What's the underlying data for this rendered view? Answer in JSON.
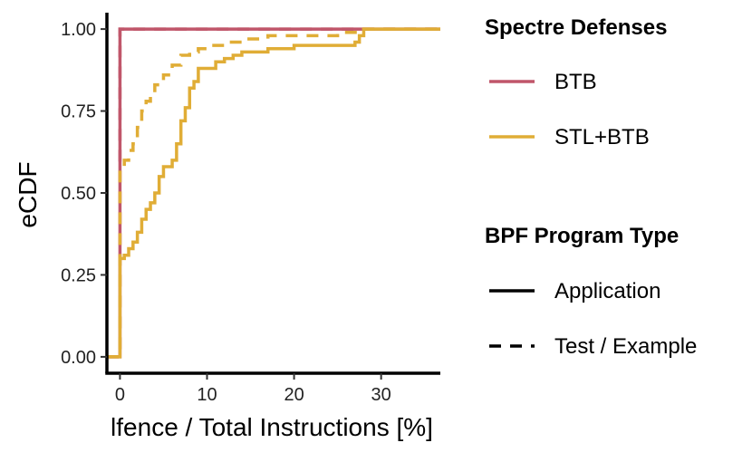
{
  "chart_data": {
    "type": "line",
    "subtype": "ecdf-step",
    "xlabel": "lfence / Total Instructions [%]",
    "ylabel": "eCDF",
    "xlim": [
      -1.5,
      36.8
    ],
    "ylim": [
      -0.05,
      1.05
    ],
    "x_ticks": [
      0,
      10,
      20,
      30
    ],
    "x_tick_labels": [
      "0",
      "10",
      "20",
      "30"
    ],
    "y_ticks": [
      0,
      0.25,
      0.5,
      0.75,
      1.0
    ],
    "y_tick_labels": [
      "0.00",
      "0.25",
      "0.50",
      "0.75",
      "1.00"
    ],
    "grid": false,
    "legends": [
      {
        "title": "Spectre Defenses",
        "entries": [
          {
            "label": "BTB",
            "color": "#c0566a",
            "style": "solid"
          },
          {
            "label": "STL+BTB",
            "color": "#e0ad36",
            "style": "solid"
          }
        ]
      },
      {
        "title": "BPF Program Type",
        "entries": [
          {
            "label": "Application",
            "color": "#000000",
            "style": "solid"
          },
          {
            "label": "Test / Example",
            "color": "#000000",
            "style": "dashed"
          }
        ]
      }
    ],
    "series": [
      {
        "name": "BTB / Test / Example",
        "defense": "BTB",
        "program_type": "Test / Example",
        "color": "#c0566a",
        "dashed": true,
        "points": [
          [
            -1.5,
            0
          ],
          [
            0,
            0
          ],
          [
            0,
            1.0
          ],
          [
            36.8,
            1.0
          ]
        ]
      },
      {
        "name": "BTB / Application",
        "defense": "BTB",
        "program_type": "Application",
        "color": "#c0566a",
        "dashed": false,
        "points": [
          [
            -1.5,
            0
          ],
          [
            0,
            0
          ],
          [
            0,
            1.0
          ],
          [
            36.8,
            1.0
          ]
        ]
      },
      {
        "name": "STL+BTB / Application",
        "defense": "STL+BTB",
        "program_type": "Application",
        "color": "#e0ad36",
        "dashed": false,
        "points": [
          [
            -1.5,
            0
          ],
          [
            0,
            0
          ],
          [
            0,
            0.3
          ],
          [
            0.5,
            0.31
          ],
          [
            1.0,
            0.33
          ],
          [
            1.5,
            0.35
          ],
          [
            2.0,
            0.38
          ],
          [
            2.5,
            0.42
          ],
          [
            3.0,
            0.45
          ],
          [
            3.5,
            0.47
          ],
          [
            4.0,
            0.5
          ],
          [
            4.5,
            0.55
          ],
          [
            5.0,
            0.58
          ],
          [
            5.5,
            0.58
          ],
          [
            6.0,
            0.6
          ],
          [
            6.5,
            0.65
          ],
          [
            7.0,
            0.72
          ],
          [
            7.5,
            0.76
          ],
          [
            8.0,
            0.82
          ],
          [
            8.5,
            0.84
          ],
          [
            9.0,
            0.88
          ],
          [
            10.0,
            0.88
          ],
          [
            11.0,
            0.9
          ],
          [
            12.0,
            0.91
          ],
          [
            13.0,
            0.92
          ],
          [
            14.0,
            0.93
          ],
          [
            17.0,
            0.94
          ],
          [
            20.0,
            0.95
          ],
          [
            24.0,
            0.95
          ],
          [
            27.0,
            0.96
          ],
          [
            27.5,
            0.98
          ],
          [
            28.0,
            1.0
          ],
          [
            36.8,
            1.0
          ]
        ]
      },
      {
        "name": "STL+BTB / Test / Example",
        "defense": "STL+BTB",
        "program_type": "Test / Example",
        "color": "#e0ad36",
        "dashed": true,
        "points": [
          [
            -1.5,
            0
          ],
          [
            0,
            0
          ],
          [
            0,
            0.58
          ],
          [
            0.5,
            0.6
          ],
          [
            1.0,
            0.63
          ],
          [
            1.5,
            0.65
          ],
          [
            2.0,
            0.7
          ],
          [
            2.5,
            0.75
          ],
          [
            3.0,
            0.78
          ],
          [
            3.5,
            0.8
          ],
          [
            4.0,
            0.83
          ],
          [
            5.0,
            0.86
          ],
          [
            6.0,
            0.89
          ],
          [
            7.0,
            0.92
          ],
          [
            8.0,
            0.93
          ],
          [
            9.0,
            0.94
          ],
          [
            10.0,
            0.95
          ],
          [
            12.0,
            0.96
          ],
          [
            14.0,
            0.97
          ],
          [
            17.0,
            0.98
          ],
          [
            20.0,
            0.98
          ],
          [
            25.0,
            0.99
          ],
          [
            28.0,
            1.0
          ],
          [
            36.8,
            1.0
          ]
        ]
      }
    ]
  }
}
